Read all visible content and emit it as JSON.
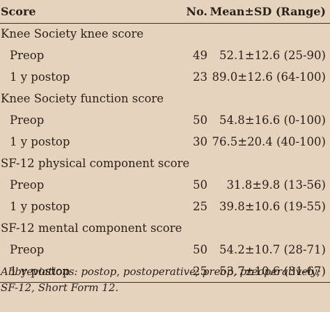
{
  "table": {
    "headers": {
      "score": "Score",
      "no": "No.",
      "mean": "Mean±SD (Range)"
    },
    "groups": [
      {
        "title": "Knee Society knee score",
        "rows": [
          {
            "label": "Preop",
            "no": "49",
            "mean": "52.1±12.6 (25-90)"
          },
          {
            "label": "1 y postop",
            "no": "23",
            "mean": "89.0±12.6 (64-100)"
          }
        ]
      },
      {
        "title": "Knee Society function score",
        "rows": [
          {
            "label": "Preop",
            "no": "50",
            "mean": "54.8±16.6 (0-100)"
          },
          {
            "label": "1 y postop",
            "no": "30",
            "mean": "76.5±20.4 (40-100)"
          }
        ]
      },
      {
        "title": "SF-12 physical component score",
        "rows": [
          {
            "label": "Preop",
            "no": "50",
            "mean": "31.8±9.8 (13-56)"
          },
          {
            "label": "1 y postop",
            "no": "25",
            "mean": "39.8±10.6 (19-55)"
          }
        ]
      },
      {
        "title": "SF-12 mental component score",
        "rows": [
          {
            "label": "Preop",
            "no": "50",
            "mean": "54.2±10.7 (28-71)"
          },
          {
            "label": "1 y postop",
            "no": "25",
            "mean": "53.7±10.6 (31-67)"
          }
        ]
      }
    ]
  },
  "footnote": {
    "line1": "Abbreviations: postop, postoperative; preop, preoperatively;",
    "line2": "SF-12, Short Form 12."
  },
  "colors": {
    "background": "#e5d3bd",
    "text": "#2a2118",
    "rule": "#3a2e22"
  }
}
